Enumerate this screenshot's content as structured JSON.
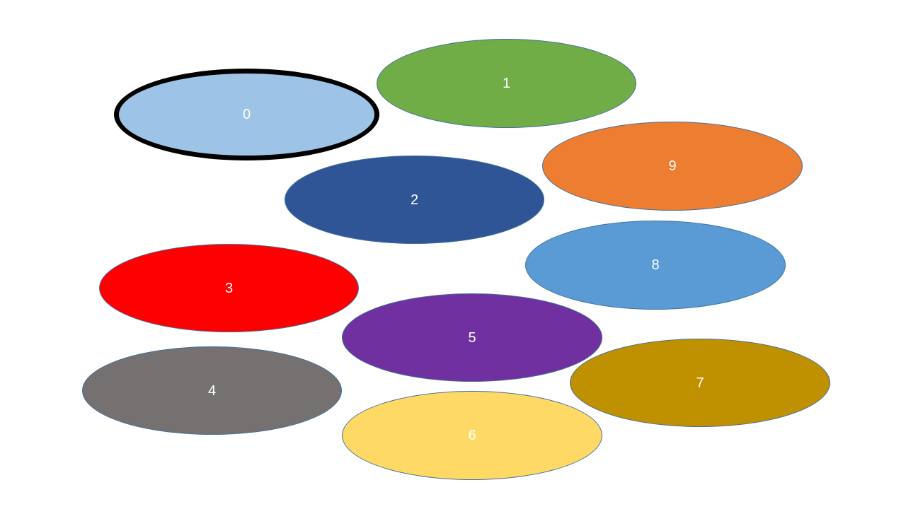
{
  "shapes": [
    {
      "label": "0",
      "fill": "#9dc3e6",
      "selected": true
    },
    {
      "label": "1",
      "fill": "#70ad47",
      "selected": false
    },
    {
      "label": "2",
      "fill": "#2f5597",
      "selected": false
    },
    {
      "label": "3",
      "fill": "#ff0000",
      "selected": false
    },
    {
      "label": "4",
      "fill": "#767171",
      "selected": false
    },
    {
      "label": "5",
      "fill": "#7030a0",
      "selected": false
    },
    {
      "label": "6",
      "fill": "#ffd966",
      "selected": false
    },
    {
      "label": "7",
      "fill": "#bf9000",
      "selected": false
    },
    {
      "label": "8",
      "fill": "#5b9bd5",
      "selected": false
    },
    {
      "label": "9",
      "fill": "#ed7d31",
      "selected": false
    }
  ]
}
